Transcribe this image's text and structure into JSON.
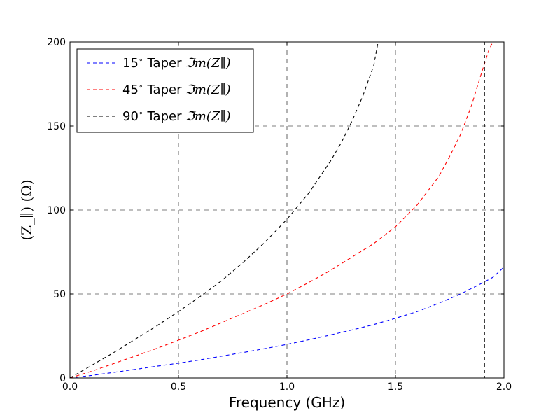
{
  "chart_data": {
    "type": "line",
    "xlabel": "Frequency (GHz)",
    "ylabel": "(Z_∥) (Ω)",
    "xlim": [
      0.0,
      2.0
    ],
    "ylim": [
      0,
      200
    ],
    "x_ticks": [
      "0.0",
      "0.5",
      "1.0",
      "1.5",
      "2.0"
    ],
    "y_ticks": [
      "0",
      "50",
      "100",
      "150",
      "200"
    ],
    "grid": true,
    "grid_style": "dashed",
    "legend_position": "top-left",
    "series": [
      {
        "name": "15° Taper ℑm(Z∥)",
        "legend_prefix": "15",
        "legend_mid": " Taper ",
        "legend_math": "ℑm(Z∥)",
        "color": "#0000ff",
        "dash": "dashed",
        "x": [
          0.0,
          0.1,
          0.2,
          0.3,
          0.4,
          0.5,
          0.6,
          0.7,
          0.8,
          0.9,
          1.0,
          1.1,
          1.2,
          1.3,
          1.4,
          1.5,
          1.6,
          1.7,
          1.8,
          1.9,
          1.95,
          2.0
        ],
        "y": [
          0,
          1.5,
          3.3,
          5.1,
          7.0,
          8.8,
          10.8,
          13.0,
          15.2,
          17.5,
          20.0,
          22.7,
          25.6,
          28.6,
          31.8,
          35.5,
          39.5,
          44.5,
          50.0,
          56.5,
          60.0,
          66.0
        ]
      },
      {
        "name": "45° Taper ℑm(Z∥)",
        "legend_prefix": "45",
        "legend_mid": " Taper ",
        "legend_math": "ℑm(Z∥)",
        "color": "#ff0000",
        "dash": "dashed",
        "x": [
          0.0,
          0.1,
          0.2,
          0.3,
          0.4,
          0.5,
          0.6,
          0.7,
          0.8,
          0.9,
          1.0,
          1.1,
          1.2,
          1.3,
          1.4,
          1.5,
          1.6,
          1.7,
          1.75,
          1.8,
          1.85,
          1.9,
          1.93,
          1.96
        ],
        "y": [
          0,
          4.0,
          8.5,
          13.0,
          17.6,
          22.5,
          27.5,
          33.0,
          38.5,
          44.0,
          50.0,
          56.8,
          64.0,
          72.0,
          80.0,
          90.0,
          103.0,
          120.0,
          132.0,
          145.0,
          162.0,
          183.0,
          195.0,
          203.0
        ]
      },
      {
        "name": "90° Taper ℑm(Z∥)",
        "legend_prefix": "90",
        "legend_mid": " Taper ",
        "legend_math": "ℑm(Z∥)",
        "color": "#000000",
        "dash": "dashed",
        "x": [
          0.0,
          0.1,
          0.2,
          0.3,
          0.4,
          0.5,
          0.6,
          0.7,
          0.8,
          0.9,
          1.0,
          1.1,
          1.2,
          1.25,
          1.3,
          1.35,
          1.4,
          1.42
        ],
        "y": [
          0,
          7.5,
          15.0,
          23.0,
          31.0,
          39.5,
          48.5,
          58.0,
          69.0,
          81.0,
          94.5,
          110.0,
          129.0,
          140.0,
          153.0,
          168.0,
          186.0,
          200.0
        ]
      }
    ],
    "vertical_lines": [
      {
        "x": 1.91,
        "color": "#000000",
        "dash": "dashed"
      }
    ]
  }
}
